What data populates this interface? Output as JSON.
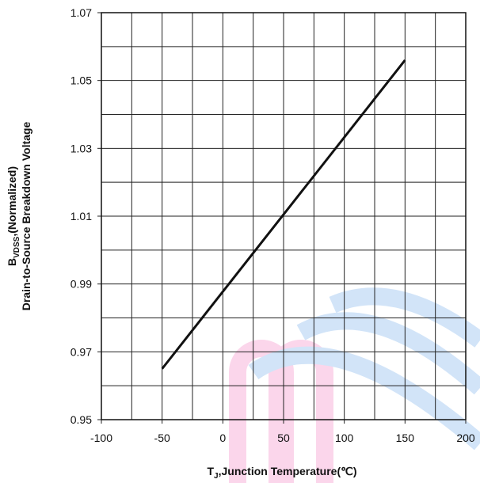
{
  "chart_data": {
    "type": "line",
    "x": [
      -50,
      150
    ],
    "series": [
      {
        "color": "#111111",
        "values": [
          0.965,
          1.056
        ]
      }
    ],
    "xlim": [
      -100,
      200
    ],
    "xticks": [
      -100,
      -50,
      0,
      50,
      100,
      150,
      200
    ],
    "x_minor_ticks": [
      -75,
      -25,
      25,
      75,
      125,
      175
    ],
    "ylim": [
      0.95,
      1.07
    ],
    "yticks": [
      0.95,
      0.97,
      0.99,
      1.01,
      1.03,
      1.05,
      1.07
    ],
    "y_minor_ticks": [
      0.96,
      0.98,
      1.0,
      1.02,
      1.04,
      1.06
    ],
    "grid": true,
    "xlabel": [
      "T",
      "J",
      ",Junction Temperature(℃)"
    ],
    "ylabel": [
      [
        "B",
        "VDSS",
        ",(Normalized)"
      ],
      [
        "Drain-to-Source Breakdown Voltage"
      ]
    ]
  }
}
